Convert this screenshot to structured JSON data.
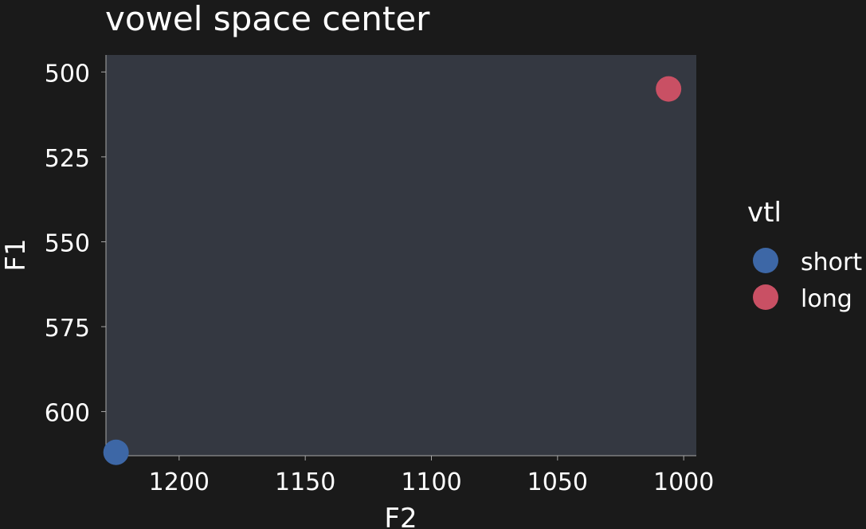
{
  "chart_data": {
    "type": "scatter",
    "title": "vowel space center",
    "xlabel": "F2",
    "ylabel": "F1",
    "xlim": [
      1229,
      995
    ],
    "ylim": [
      495,
      613
    ],
    "x_reversed": true,
    "y_reversed": true,
    "xticks": [
      1200,
      1150,
      1100,
      1050,
      1000
    ],
    "yticks": [
      500,
      525,
      550,
      575,
      600
    ],
    "grid": false,
    "legend_position": "right",
    "legend_title": "vtl",
    "series": [
      {
        "name": "short",
        "color": "#3d67a6",
        "points": [
          {
            "x": 1225,
            "y": 612
          }
        ]
      },
      {
        "name": "long",
        "color": "#c95064",
        "points": [
          {
            "x": 1006,
            "y": 505
          }
        ]
      }
    ]
  },
  "colors": {
    "background": "#1a1a1a",
    "panel": "#343841",
    "axis_line": "#a8a8a8",
    "text": "#ffffff"
  }
}
